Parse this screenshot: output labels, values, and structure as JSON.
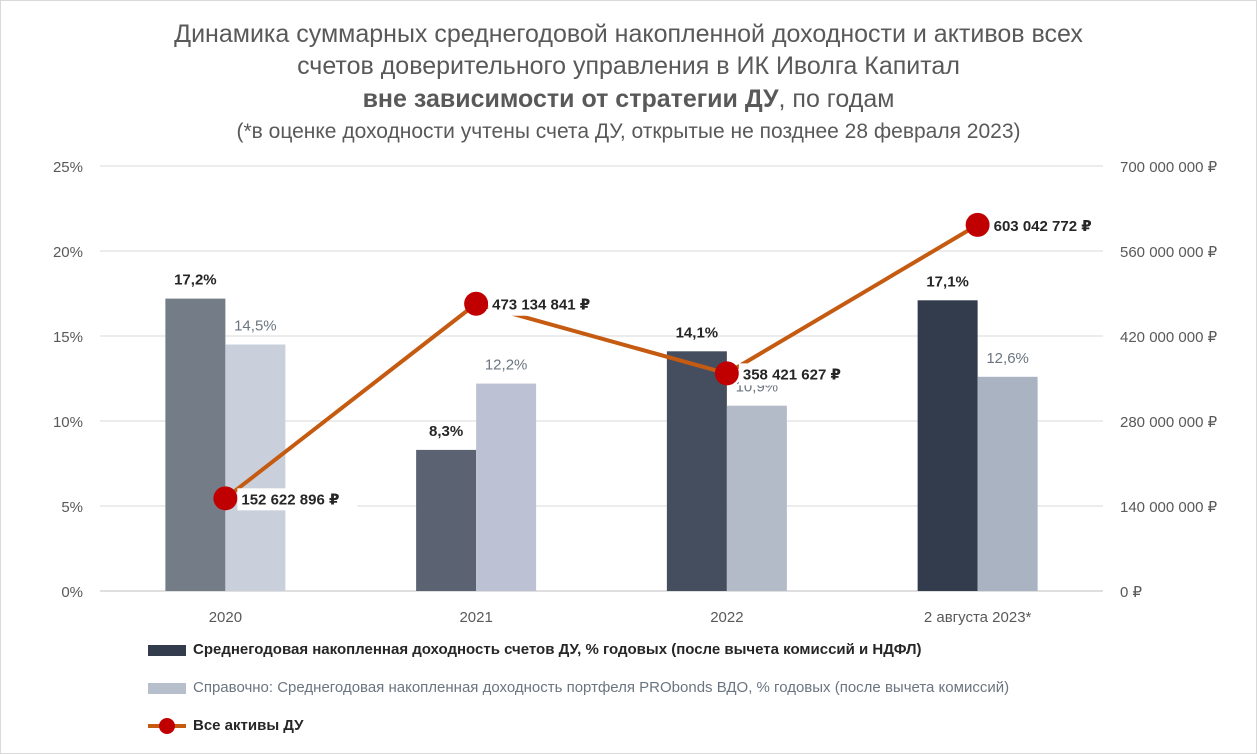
{
  "title": {
    "line1": "Динамика суммарных среднегодовой накопленной доходности и активов всех",
    "line2": "счетов доверительного управления в ИК Иволга Капитал",
    "line3_bold": "вне зависимости от стратегии ДУ",
    "line3_rest": ", по годам",
    "line4": "(*в оценке доходности учтены счета ДУ, открытые не позднее 28 февраля 2023)"
  },
  "chart_data": {
    "type": "bar",
    "categories": [
      "2020",
      "2021",
      "2022",
      "2 августа 2023*"
    ],
    "series": [
      {
        "name": "Среднегодовая накопленная доходность счетов ДУ, % годовых (после вычета комиссий и НДФЛ)",
        "type": "bar",
        "axis": "left",
        "values": [
          17.2,
          8.3,
          14.1,
          17.1
        ],
        "labels": [
          "17,2%",
          "8,3%",
          "14,1%",
          "17,1%"
        ],
        "colors": [
          "#747c87",
          "#5b6272",
          "#454e5f",
          "#333c4d"
        ],
        "legend_color": "#333c4d",
        "label_color": "#262626"
      },
      {
        "name": "Справочно: Среднегодовая накопленная доходность портфеля PRObonds ВДО, % годовых (после вычета комиссий)",
        "type": "bar",
        "axis": "left",
        "values": [
          14.5,
          12.2,
          10.9,
          12.6
        ],
        "labels": [
          "14,5%",
          "12,2%",
          "10,9%",
          "12,6%"
        ],
        "colors": [
          "#c9cfdb",
          "#bcc2d4",
          "#b3bac8",
          "#aab3c2"
        ],
        "legend_color": "#b8bfcc",
        "label_color": "#6b7580"
      },
      {
        "name": "Все активы ДУ",
        "type": "line",
        "axis": "right",
        "values": [
          152622896,
          473134841,
          358421627,
          603042772
        ],
        "labels": [
          "152 622 896 ₽",
          "473 134 841 ₽",
          "358 421 627 ₽",
          "603 042 772 ₽"
        ],
        "line_color": "#c55a11",
        "marker_color": "#c00000"
      }
    ],
    "left_axis": {
      "min": 0,
      "max": 25,
      "ticks": [
        "0%",
        "5%",
        "10%",
        "15%",
        "20%",
        "25%"
      ]
    },
    "right_axis": {
      "min": 0,
      "max": 700000000,
      "ticks": [
        "0 ₽",
        "140 000 000 ₽",
        "280 000 000 ₽",
        "420 000 000 ₽",
        "560 000 000 ₽",
        "700 000 000 ₽"
      ]
    },
    "grid": true,
    "legend_position": "bottom"
  }
}
